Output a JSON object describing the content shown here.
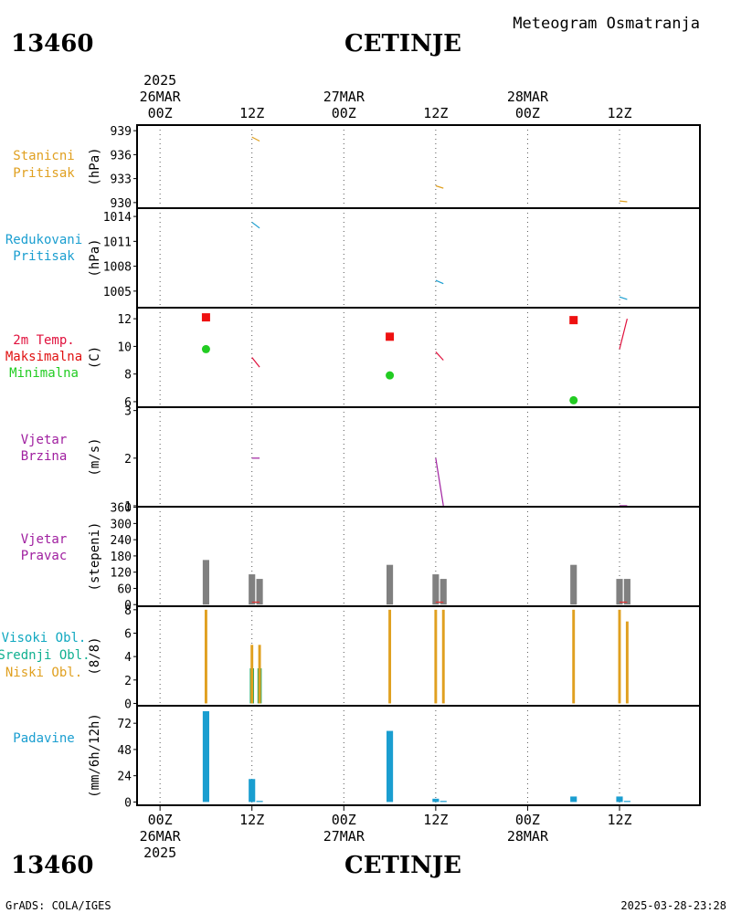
{
  "header": {
    "station_id": "13460",
    "station_name": "CETINJE",
    "product": "Meteogram Osmatranja"
  },
  "footer": {
    "station_id": "13460",
    "station_name": "CETINJE",
    "credit": "GrADS: COLA/IGES",
    "timestamp": "2025-03-28-23:28"
  },
  "time_axis": {
    "hours_labels": [
      "00Z",
      "12Z",
      "00Z",
      "12Z",
      "00Z",
      "12Z"
    ],
    "hours_values": [
      0,
      12,
      24,
      36,
      48,
      60
    ],
    "date_labels": [
      {
        "hour": 0,
        "top": [
          "2025",
          "26MAR"
        ],
        "bottom": [
          "26MAR",
          "2025"
        ]
      },
      {
        "hour": 24,
        "top": [
          "27MAR"
        ],
        "bottom": [
          "27MAR"
        ]
      },
      {
        "hour": 48,
        "top": [
          "28MAR"
        ],
        "bottom": [
          "28MAR"
        ]
      }
    ],
    "range": [
      -3,
      70.5
    ]
  },
  "chart_data": [
    {
      "type": "line",
      "labels": [
        "Stanicni",
        "Pritisak"
      ],
      "label_colors": [
        "#e0a020",
        "#e0a020"
      ],
      "unit": "(hPa)",
      "ylim": [
        929.3,
        939.7
      ],
      "yticks": [
        939,
        936,
        933,
        930
      ],
      "series": [
        {
          "color": "#e0a020",
          "segments": [
            [
              [
                12,
                938.2
              ],
              [
                13,
                937.7
              ]
            ],
            [
              [
                36,
                932.1
              ],
              [
                37,
                931.8
              ]
            ],
            [
              [
                60,
                930.2
              ],
              [
                61,
                930.1
              ]
            ]
          ]
        }
      ]
    },
    {
      "type": "line",
      "labels": [
        "Redukovani",
        "Pritisak"
      ],
      "label_colors": [
        "#1a9ed0",
        "#1a9ed0"
      ],
      "unit": "(hPa)",
      "ylim": [
        1003.0,
        1015.0
      ],
      "yticks": [
        1014,
        1011,
        1008,
        1005
      ],
      "series": [
        {
          "color": "#1a9ed0",
          "segments": [
            [
              [
                12,
                1013.3
              ],
              [
                13,
                1012.6
              ]
            ],
            [
              [
                36,
                1006.3
              ],
              [
                37,
                1005.9
              ]
            ],
            [
              [
                60,
                1004.3
              ],
              [
                61,
                1004.0
              ]
            ]
          ]
        }
      ]
    },
    {
      "type": "line",
      "labels": [
        "2m Temp.",
        "Maksimalna",
        "Minimalna"
      ],
      "label_colors": [
        "#e0103c",
        "#e01010",
        "#22cc22"
      ],
      "unit": "(C)",
      "ylim": [
        5.6,
        12.8
      ],
      "yticks": [
        12,
        10,
        8,
        6
      ],
      "series": [
        {
          "color": "#e0103c",
          "segments": [
            [
              [
                12,
                9.2
              ],
              [
                13,
                8.5
              ]
            ],
            [
              [
                36,
                9.6
              ],
              [
                37,
                9.0
              ]
            ],
            [
              [
                60,
                9.8
              ],
              [
                61,
                12.0
              ]
            ]
          ]
        }
      ],
      "markers": [
        {
          "shape": "square",
          "color": "#ee1111",
          "points": [
            [
              6,
              12.1
            ],
            [
              30,
              10.7
            ],
            [
              54,
              11.9
            ]
          ]
        },
        {
          "shape": "circle",
          "color": "#22cc22",
          "points": [
            [
              6,
              9.8
            ],
            [
              30,
              7.9
            ],
            [
              54,
              6.1
            ]
          ]
        }
      ]
    },
    {
      "type": "line",
      "labels": [
        "Vjetar",
        "Brzina"
      ],
      "label_colors": [
        "#a020a0",
        "#a020a0"
      ],
      "unit": "(m/s)",
      "ylim": [
        0.98,
        3.07
      ],
      "yticks": [
        3,
        2,
        1
      ],
      "series": [
        {
          "color": "#a020a0",
          "segments": [
            [
              [
                12,
                2.0
              ],
              [
                13,
                2.0
              ]
            ],
            [
              [
                36,
                2.0
              ],
              [
                37,
                1.0
              ]
            ],
            [
              [
                60,
                1.0
              ],
              [
                61,
                1.0
              ]
            ]
          ]
        }
      ]
    },
    {
      "type": "bar",
      "labels": [
        "Vjetar",
        "Pravac"
      ],
      "label_colors": [
        "#a020a0",
        "#a020a0"
      ],
      "unit": "(stepeni)",
      "ylim": [
        -6,
        362
      ],
      "yticks": [
        360,
        300,
        240,
        180,
        120,
        60,
        0
      ],
      "bar_width_h": 0.85,
      "bars": [
        {
          "x": 6,
          "value": 165,
          "color": "#808080"
        },
        {
          "x": 12,
          "value": 112,
          "color": "#808080"
        },
        {
          "x": 13,
          "value": 95,
          "color": "#808080"
        },
        {
          "x": 30,
          "value": 147,
          "color": "#808080"
        },
        {
          "x": 36,
          "value": 112,
          "color": "#808080"
        },
        {
          "x": 37,
          "value": 95,
          "color": "#808080"
        },
        {
          "x": 54,
          "value": 147,
          "color": "#808080"
        },
        {
          "x": 60,
          "value": 95,
          "color": "#808080"
        },
        {
          "x": 61,
          "value": 95,
          "color": "#808080"
        }
      ],
      "series": [
        {
          "color": "#e03030",
          "segments": [
            [
              [
                12,
                9
              ],
              [
                13,
                9
              ]
            ],
            [
              [
                36,
                9
              ],
              [
                37,
                9
              ]
            ],
            [
              [
                60,
                9
              ],
              [
                61,
                9
              ]
            ]
          ]
        }
      ]
    },
    {
      "type": "bar",
      "labels": [
        "Visoki Obl.",
        "Srednji Obl.",
        "Niski Obl."
      ],
      "label_colors": [
        "#10a8c0",
        "#10b090",
        "#e0a020"
      ],
      "unit": "(8/8)",
      "ylim": [
        -0.2,
        8.3
      ],
      "yticks": [
        8,
        6,
        4,
        2,
        0
      ],
      "bar_width_h": 0.35,
      "bars": [
        {
          "x": 6,
          "value": 8,
          "color": "#e0a020"
        },
        {
          "x": 12,
          "value": 3,
          "color": "#22aa66",
          "width_h": 0.55
        },
        {
          "x": 13,
          "value": 3,
          "color": "#22aa66",
          "width_h": 0.55
        },
        {
          "x": 12,
          "value": 5,
          "color": "#e0a020"
        },
        {
          "x": 13,
          "value": 5,
          "color": "#e0a020"
        },
        {
          "x": 30,
          "value": 8,
          "color": "#e0a020"
        },
        {
          "x": 36,
          "value": 8,
          "color": "#e0a020"
        },
        {
          "x": 37,
          "value": 8,
          "color": "#e0a020"
        },
        {
          "x": 54,
          "value": 8,
          "color": "#e0a020"
        },
        {
          "x": 60,
          "value": 8,
          "color": "#e0a020"
        },
        {
          "x": 61,
          "value": 7,
          "color": "#e0a020"
        }
      ]
    },
    {
      "type": "bar",
      "labels": [
        "Padavine"
      ],
      "label_colors": [
        "#1a9ed0"
      ],
      "unit": "(mm/6h/12h)",
      "ylim": [
        -3,
        88
      ],
      "yticks": [
        72,
        48,
        24,
        0
      ],
      "bar_width_h": 0.85,
      "bars": [
        {
          "x": 6,
          "value": 83,
          "color": "#1a9ed0"
        },
        {
          "x": 12,
          "value": 21,
          "color": "#1a9ed0"
        },
        {
          "x": 13,
          "value": 1,
          "color": "#1a9ed0"
        },
        {
          "x": 30,
          "value": 65,
          "color": "#1a9ed0"
        },
        {
          "x": 36,
          "value": 3,
          "color": "#1a9ed0"
        },
        {
          "x": 37,
          "value": 1,
          "color": "#1a9ed0"
        },
        {
          "x": 54,
          "value": 5,
          "color": "#1a9ed0"
        },
        {
          "x": 60,
          "value": 5,
          "color": "#1a9ed0"
        },
        {
          "x": 61,
          "value": 1,
          "color": "#1a9ed0"
        }
      ]
    }
  ]
}
